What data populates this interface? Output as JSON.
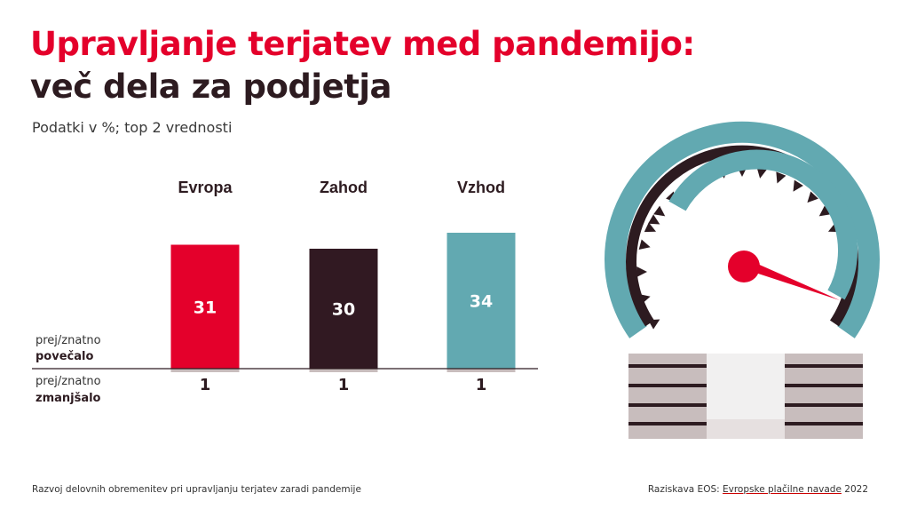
{
  "title": {
    "line1": "Upravljanje terjatev med pandemijo:",
    "line2": "več dela za podjetja"
  },
  "subtitle": "Podatki v %; top 2 vrednosti",
  "labels": {
    "increased_a": "prej/znatno",
    "increased_b": "povečalo",
    "decreased_a": "prej/znatno",
    "decreased_b": "zmanjšalo"
  },
  "footer": {
    "left": "Razvoj delovnih obremenitev pri upravljanju terjatev zaradi pandemije",
    "right_prefix": "Raziskava EOS: ",
    "right_link": "Evropske plačilne navade",
    "right_suffix": " 2022"
  },
  "colors": {
    "title_red": "#e4002b",
    "title_dark": "#2d1b20",
    "evropa": "#e4002b",
    "zahod": "#311922",
    "vzhod": "#62a9b1",
    "negative": "#c8bdbd"
  },
  "illustration": {
    "icon": "speedometer-on-stack-icon"
  },
  "chart_data": {
    "type": "bar",
    "categories": [
      "Evropa",
      "Zahod",
      "Vzhod"
    ],
    "series": [
      {
        "name": "prej/znatno povečalo",
        "values": [
          31,
          30,
          34
        ]
      },
      {
        "name": "prej/znatno zmanjšalo",
        "values": [
          1,
          1,
          1
        ]
      }
    ],
    "value_labels": {
      "increased": [
        "31",
        "30",
        "34"
      ],
      "decreased": [
        "1",
        "1",
        "1"
      ]
    }
  }
}
